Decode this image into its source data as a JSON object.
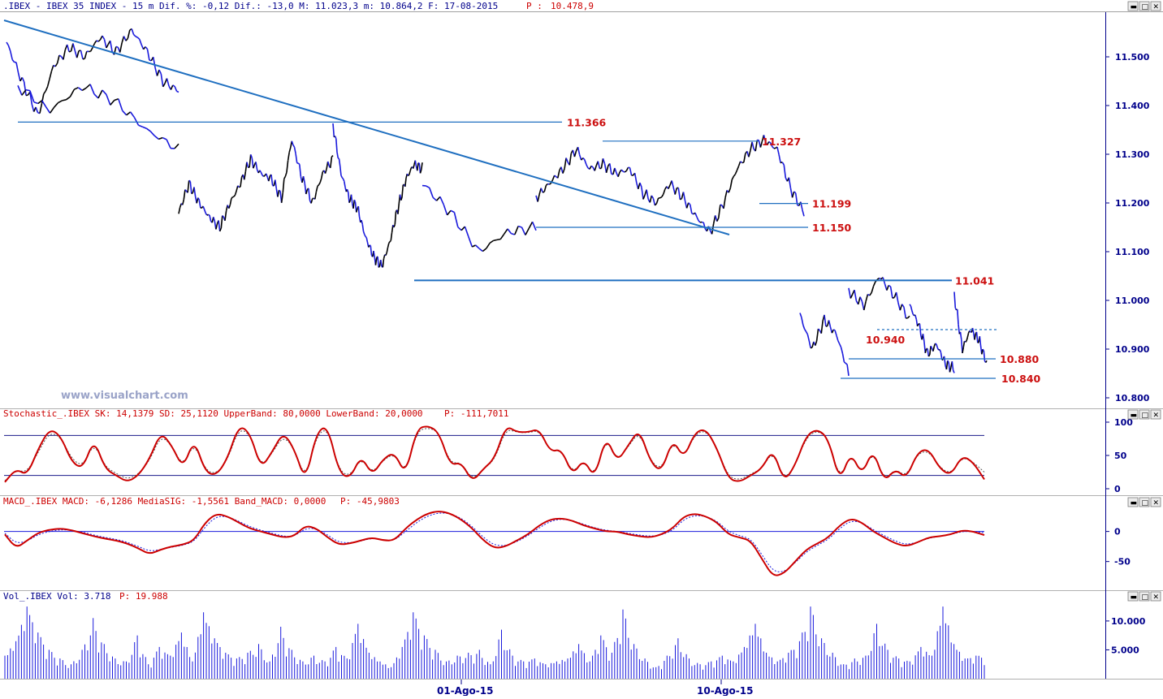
{
  "header": {
    "main": ".IBEX - IBEX 35 INDEX -  15 m Dif. %: -0,12 Dif.: -13,0 M: 11.023,3 m: 10.864,2 F: 17-08-2015",
    "main_p_label": "P :",
    "main_p_value": "10.478,9",
    "stoch": "Stochastic_.IBEX SK: 14,1379 SD: 25,1120 UpperBand: 80,0000 LowerBand: 20,0000",
    "stoch_p": "P: -111,7011",
    "macd": "MACD_.IBEX MACD: -6,1286 MediaSIG: -1,5561 Band_MACD: 0,0000",
    "macd_p": "P: -45,9803",
    "vol": "Vol_.IBEX Vol: 3.718",
    "vol_p": "P: 19.988"
  },
  "watermark": "www.visualchart.com",
  "window_controls": {
    "icons": [
      "minimize-icon",
      "maximize-icon",
      "close-icon"
    ]
  },
  "colors": {
    "price_up": "#000000",
    "price_down": "#1a1adc",
    "trendline": "#1f6fc0",
    "level_text": "#cc1010",
    "stoch_line": "#cc0000",
    "macd_line": "#cc0000",
    "volume": "#1a1adc",
    "axis": "#00008b"
  },
  "chart_data": [
    {
      "type": "line",
      "name": "price",
      "ylim": [
        10780,
        11590
      ],
      "y_ticks": [
        "11.500",
        "11.400",
        "11.300",
        "11.200",
        "11.100",
        "11.000",
        "10.900",
        "10.800"
      ],
      "x_labels": [
        "01-Ago-15",
        "10-Ago-15"
      ],
      "levels": [
        {
          "label": "11.366",
          "value": 11366
        },
        {
          "label": "11.327",
          "value": 11327
        },
        {
          "label": "11.199",
          "value": 11199
        },
        {
          "label": "11.150",
          "value": 11150
        },
        {
          "label": "11.041",
          "value": 11041
        },
        {
          "label": "10.940",
          "value": 10940
        },
        {
          "label": "10.880",
          "value": 10880
        },
        {
          "label": "10.840",
          "value": 10840
        }
      ],
      "trendline": {
        "from": 11575,
        "to": 11135
      },
      "series": [
        {
          "segments": [
            {
              "y": [
                11530,
                11450,
                11380,
                11480,
                11520,
                11500,
                11540,
                11510,
                11555,
                11510,
                11450,
                11430
              ]
            },
            {
              "y": [
                11440,
                11390,
                11440,
                11410,
                11350,
                11310
              ]
            },
            {
              "y": [
                11180,
                11240,
                11200,
                11170,
                11150,
                11200,
                11240,
                11290,
                11260,
                11250,
                11210,
                11330,
                11250,
                11200,
                11260,
                11290
              ]
            },
            {
              "y": [
                11360,
                11260,
                11210,
                11190,
                11130,
                11090,
                11070,
                11120,
                11190,
                11250,
                11280,
                11270
              ]
            },
            {
              "y": [
                11240,
                11180,
                11100,
                11140,
                11150
              ]
            },
            {
              "y": [
                11210,
                11240,
                11270,
                11310,
                11270,
                11280,
                11260,
                11270,
                11220,
                11200,
                11240,
                11210,
                11170,
                11140,
                11200,
                11270,
                11310,
                11330,
                11310,
                11230,
                11180
              ]
            }
          ]
        },
        {
          "segments": [
            {
              "y": [
                10970,
                10900,
                10960,
                10930,
                10850
              ]
            },
            {
              "y": [
                11020,
                10990,
                11050,
                11010,
                10960
              ]
            },
            {
              "y": [
                10990,
                10950,
                10890,
                10910,
                10870,
                10860
              ]
            },
            {
              "y": [
                11010,
                10900,
                10940,
                10920,
                10870
              ]
            }
          ]
        }
      ]
    },
    {
      "type": "line",
      "name": "stochastic",
      "ylim": [
        0,
        100
      ],
      "y_ticks": [
        "100",
        "50",
        "0"
      ],
      "bands": [
        80,
        20
      ],
      "series": [
        {
          "values": [
            10,
            30,
            20,
            60,
            90,
            80,
            40,
            30,
            75,
            30,
            20,
            10,
            20,
            45,
            85,
            65,
            30,
            75,
            25,
            20,
            45,
            95,
            85,
            30,
            55,
            85,
            60,
            10,
            85,
            95,
            25,
            15,
            50,
            20,
            45,
            55,
            20,
            90,
            95,
            85,
            35,
            40,
            10,
            30,
            45,
            95,
            85,
            85,
            90,
            55,
            60,
            20,
            45,
            15,
            80,
            40,
            65,
            90,
            40,
            25,
            75,
            45,
            85,
            90,
            60,
            15,
            10,
            20,
            30,
            60,
            10,
            35,
            80,
            90,
            75,
            10,
            55,
            20,
            60,
            10,
            30,
            15,
            55,
            60,
            30,
            20,
            50,
            40,
            14
          ]
        },
        {
          "values": [
            12,
            28,
            25,
            55,
            85,
            78,
            45,
            33,
            70,
            33,
            23,
            14,
            22,
            42,
            80,
            65,
            33,
            70,
            28,
            22,
            43,
            90,
            83,
            33,
            53,
            80,
            60,
            14,
            80,
            92,
            28,
            18,
            47,
            23,
            43,
            53,
            23,
            86,
            92,
            85,
            38,
            40,
            13,
            30,
            43,
            90,
            85,
            84,
            88,
            56,
            58,
            23,
            43,
            18,
            77,
            42,
            63,
            86,
            42,
            28,
            72,
            46,
            82,
            88,
            60,
            18,
            13,
            22,
            30,
            57,
            13,
            35,
            77,
            88,
            75,
            13,
            53,
            22,
            57,
            13,
            30,
            18,
            53,
            57,
            32,
            22,
            48,
            40,
            25
          ]
        }
      ]
    },
    {
      "type": "line",
      "name": "macd",
      "ylim": [
        -95,
        40
      ],
      "y_ticks": [
        "0",
        "-50"
      ],
      "zero_line": 0,
      "series": [
        {
          "values": [
            -5,
            -28,
            -15,
            -2,
            3,
            5,
            2,
            -3,
            -8,
            -12,
            -15,
            -20,
            -28,
            -38,
            -30,
            -25,
            -22,
            -15,
            15,
            30,
            25,
            15,
            5,
            0,
            -5,
            -10,
            -8,
            10,
            5,
            -10,
            -22,
            -20,
            -15,
            -10,
            -15,
            -15,
            5,
            20,
            30,
            34,
            30,
            20,
            5,
            -15,
            -28,
            -25,
            -15,
            -5,
            10,
            20,
            22,
            18,
            10,
            5,
            0,
            0,
            -5,
            -8,
            -10,
            -5,
            5,
            25,
            30,
            25,
            15,
            -5,
            -10,
            -15,
            -45,
            -75,
            -70,
            -50,
            -30,
            -20,
            -10,
            10,
            22,
            15,
            0,
            -10,
            -20,
            -25,
            -18,
            -10,
            -8,
            -5,
            2,
            0,
            -6
          ]
        },
        {
          "values": [
            -3,
            -20,
            -16,
            -5,
            0,
            3,
            2,
            -1,
            -6,
            -10,
            -13,
            -18,
            -25,
            -33,
            -30,
            -26,
            -23,
            -17,
            8,
            25,
            25,
            17,
            8,
            2,
            -3,
            -8,
            -8,
            5,
            5,
            -6,
            -18,
            -19,
            -16,
            -11,
            -14,
            -15,
            0,
            15,
            26,
            31,
            30,
            22,
            8,
            -10,
            -23,
            -24,
            -17,
            -7,
            6,
            17,
            21,
            18,
            12,
            6,
            2,
            0,
            -3,
            -6,
            -8,
            -6,
            2,
            20,
            27,
            25,
            17,
            0,
            -7,
            -12,
            -38,
            -66,
            -68,
            -52,
            -34,
            -23,
            -13,
            5,
            18,
            15,
            3,
            -7,
            -16,
            -22,
            -18,
            -11,
            -8,
            -5,
            0,
            0,
            -2
          ]
        }
      ]
    },
    {
      "type": "bar",
      "name": "volume",
      "ylim": [
        0,
        13500
      ],
      "y_ticks": [
        "10.000",
        "5.000"
      ],
      "values": [
        4000,
        6500,
        12500,
        8000,
        5000,
        3500,
        2500,
        5000,
        10500,
        6000,
        3500,
        3000,
        7500,
        2500,
        5500,
        4000,
        8000,
        3000,
        11500,
        7000,
        4500,
        3500,
        4500,
        6000,
        3000,
        9000,
        5000,
        3000,
        4000,
        3000,
        5500,
        3500,
        9500,
        4500,
        3000,
        2000,
        5500,
        11500,
        7500,
        5000,
        3000,
        4000,
        4500,
        5000,
        2500,
        8500,
        4000,
        3000,
        3500,
        2500,
        3000,
        3500,
        6000,
        3000,
        7500,
        4500,
        12000,
        6000,
        3500,
        2000,
        4000,
        7000,
        3500,
        2500,
        3000,
        4000,
        3000,
        5500,
        9500,
        4500,
        3000,
        4500,
        6500,
        12500,
        7000,
        4500,
        2500,
        3500,
        4000,
        9500,
        5000,
        3500,
        3000,
        5500,
        4000,
        12500,
        6000,
        3500,
        4000
      ]
    }
  ]
}
